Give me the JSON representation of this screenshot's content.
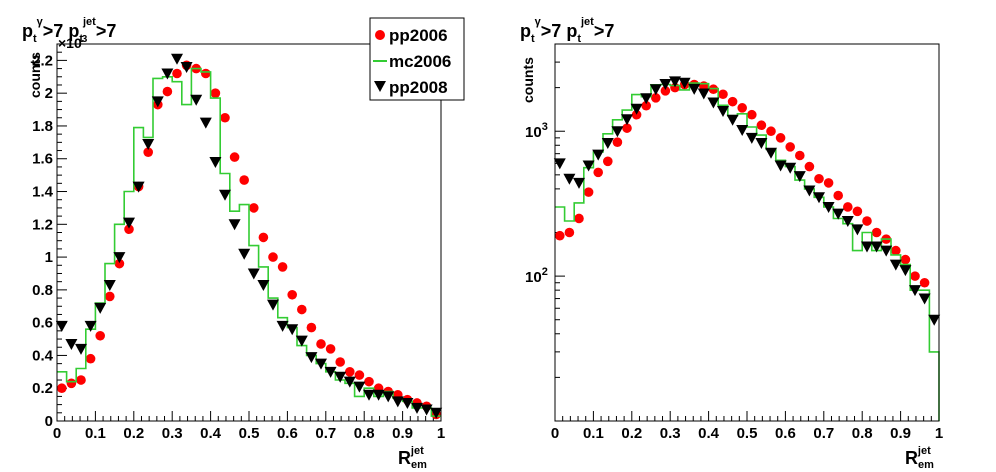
{
  "chart_data": [
    {
      "type": "scatter",
      "title": {
        "p1": "p",
        "sub1": "t",
        "sup1": "γ",
        "mid": ">7 p",
        "sub2": "t",
        "sup2": "jet",
        "end": ">7"
      },
      "xlabel": {
        "main": "R",
        "sub": "em",
        "sup": "jet"
      },
      "ylabel": "counts",
      "multiplier": {
        "times": "×10",
        "exp": "3"
      },
      "xlim": [
        0,
        1
      ],
      "ylim": [
        0,
        2300
      ],
      "yscale": "linear",
      "xticks": [
        {
          "v": 0,
          "label": "0"
        },
        {
          "v": 0.1,
          "label": "0.1"
        },
        {
          "v": 0.2,
          "label": "0.2"
        },
        {
          "v": 0.3,
          "label": "0.3"
        },
        {
          "v": 0.4,
          "label": "0.4"
        },
        {
          "v": 0.5,
          "label": "0.5"
        },
        {
          "v": 0.6,
          "label": "0.6"
        },
        {
          "v": 0.7,
          "label": "0.7"
        },
        {
          "v": 0.8,
          "label": "0.8"
        },
        {
          "v": 0.9,
          "label": "0.9"
        },
        {
          "v": 1,
          "label": "1"
        }
      ],
      "yticks": [
        {
          "v": 0,
          "label": "0"
        },
        {
          "v": 200,
          "label": "0.2"
        },
        {
          "v": 400,
          "label": "0.4"
        },
        {
          "v": 600,
          "label": "0.6"
        },
        {
          "v": 800,
          "label": "0.8"
        },
        {
          "v": 1000,
          "label": "1"
        },
        {
          "v": 1200,
          "label": "1.2"
        },
        {
          "v": 1400,
          "label": "1.4"
        },
        {
          "v": 1600,
          "label": "1.6"
        },
        {
          "v": 1800,
          "label": "1.8"
        },
        {
          "v": 2000,
          "label": "2"
        },
        {
          "v": 2200,
          "label": "2.2"
        }
      ],
      "legend": {
        "placement": "top-right",
        "entries": [
          "pp2006",
          "mc2006",
          "pp2008"
        ]
      },
      "series": [
        {
          "name": "pp2006",
          "style": "red-circle",
          "x": [
            0.0125,
            0.0375,
            0.0625,
            0.0875,
            0.1125,
            0.1375,
            0.1625,
            0.1875,
            0.2125,
            0.2375,
            0.2625,
            0.2875,
            0.3125,
            0.3375,
            0.3625,
            0.3875,
            0.4125,
            0.4375,
            0.4625,
            0.4875,
            0.5125,
            0.5375,
            0.5625,
            0.5875,
            0.6125,
            0.6375,
            0.6625,
            0.6875,
            0.7125,
            0.7375,
            0.7625,
            0.7875,
            0.8125,
            0.8375,
            0.8625,
            0.8875,
            0.9125,
            0.9375,
            0.9625,
            0.9875
          ],
          "y": [
            200,
            230,
            250,
            380,
            520,
            760,
            960,
            1170,
            1430,
            1640,
            1930,
            2010,
            2120,
            2170,
            2150,
            2120,
            2000,
            1850,
            1610,
            1470,
            1300,
            1120,
            1000,
            940,
            770,
            680,
            570,
            470,
            440,
            360,
            300,
            280,
            240,
            200,
            180,
            160,
            130,
            110,
            90,
            40
          ]
        },
        {
          "name": "mc2006",
          "style": "green-step",
          "edges": [
            0,
            0.025,
            0.05,
            0.075,
            0.1,
            0.125,
            0.15,
            0.175,
            0.2,
            0.225,
            0.25,
            0.275,
            0.3,
            0.325,
            0.35,
            0.375,
            0.4,
            0.425,
            0.45,
            0.475,
            0.5,
            0.525,
            0.55,
            0.575,
            0.6,
            0.625,
            0.65,
            0.675,
            0.7,
            0.725,
            0.75,
            0.775,
            0.8,
            0.825,
            0.85,
            0.875,
            0.9,
            0.925,
            0.95,
            0.975,
            1.0
          ],
          "y": [
            300,
            240,
            320,
            560,
            720,
            960,
            1200,
            1400,
            1790,
            1730,
            2090,
            2100,
            2070,
            1930,
            2150,
            2130,
            1970,
            1510,
            1280,
            1320,
            1070,
            940,
            750,
            630,
            570,
            460,
            400,
            350,
            300,
            250,
            230,
            150,
            200,
            150,
            180,
            140,
            120,
            80,
            80,
            30
          ]
        },
        {
          "name": "pp2008",
          "style": "black-triangle-down",
          "x": [
            0.0125,
            0.0375,
            0.0625,
            0.0875,
            0.1125,
            0.1375,
            0.1625,
            0.1875,
            0.2125,
            0.2375,
            0.2625,
            0.2875,
            0.3125,
            0.3375,
            0.3625,
            0.3875,
            0.4125,
            0.4375,
            0.4625,
            0.4875,
            0.5125,
            0.5375,
            0.5625,
            0.5875,
            0.6125,
            0.6375,
            0.6625,
            0.6875,
            0.7125,
            0.7375,
            0.7625,
            0.7875,
            0.8125,
            0.8375,
            0.8625,
            0.8875,
            0.9125,
            0.9375,
            0.9625,
            0.9875
          ],
          "y": [
            580,
            470,
            440,
            580,
            690,
            830,
            1000,
            1210,
            1430,
            1690,
            1950,
            2120,
            2210,
            2160,
            1960,
            1820,
            1580,
            1380,
            1200,
            1020,
            900,
            830,
            710,
            580,
            560,
            490,
            390,
            350,
            300,
            270,
            240,
            210,
            160,
            160,
            150,
            120,
            110,
            80,
            70,
            50
          ]
        }
      ]
    },
    {
      "type": "scatter",
      "title": {
        "p1": "p",
        "sub1": "t",
        "sup1": "γ",
        "mid": ">7 p",
        "sub2": "t",
        "sup2": "jet",
        "end": ">7"
      },
      "xlabel": {
        "main": "R",
        "sub": "em",
        "sup": "jet"
      },
      "ylabel": "counts",
      "xlim": [
        0,
        1
      ],
      "ylim": [
        10,
        4000
      ],
      "yscale": "log",
      "xticks": [
        {
          "v": 0,
          "label": "0"
        },
        {
          "v": 0.1,
          "label": "0.1"
        },
        {
          "v": 0.2,
          "label": "0.2"
        },
        {
          "v": 0.3,
          "label": "0.3"
        },
        {
          "v": 0.4,
          "label": "0.4"
        },
        {
          "v": 0.5,
          "label": "0.5"
        },
        {
          "v": 0.6,
          "label": "0.6"
        },
        {
          "v": 0.7,
          "label": "0.7"
        },
        {
          "v": 0.8,
          "label": "0.8"
        },
        {
          "v": 0.9,
          "label": "0.9"
        },
        {
          "v": 1,
          "label": "1"
        }
      ],
      "yticks": [
        {
          "v": 100,
          "base": "10",
          "exp": "2"
        },
        {
          "v": 1000,
          "base": "10",
          "exp": "3"
        }
      ],
      "series": [
        {
          "name": "pp2006",
          "style": "red-circle",
          "x": [
            0.0125,
            0.0375,
            0.0625,
            0.0875,
            0.1125,
            0.1375,
            0.1625,
            0.1875,
            0.2125,
            0.2375,
            0.2625,
            0.2875,
            0.3125,
            0.3375,
            0.3625,
            0.3875,
            0.4125,
            0.4375,
            0.4625,
            0.4875,
            0.5125,
            0.5375,
            0.5625,
            0.5875,
            0.6125,
            0.6375,
            0.6625,
            0.6875,
            0.7125,
            0.7375,
            0.7625,
            0.7875,
            0.8125,
            0.8375,
            0.8625,
            0.8875,
            0.9125,
            0.9375,
            0.9625
          ],
          "y": [
            190,
            200,
            250,
            380,
            520,
            620,
            840,
            1050,
            1300,
            1500,
            1700,
            1900,
            2000,
            2100,
            2100,
            2050,
            1950,
            1800,
            1600,
            1450,
            1300,
            1100,
            1000,
            900,
            780,
            680,
            570,
            470,
            440,
            360,
            300,
            280,
            240,
            200,
            180,
            150,
            130,
            100,
            90
          ]
        },
        {
          "name": "mc2006",
          "style": "green-step",
          "edges": [
            0,
            0.025,
            0.05,
            0.075,
            0.1,
            0.125,
            0.15,
            0.175,
            0.2,
            0.225,
            0.25,
            0.275,
            0.3,
            0.325,
            0.35,
            0.375,
            0.4,
            0.425,
            0.45,
            0.475,
            0.5,
            0.525,
            0.55,
            0.575,
            0.6,
            0.625,
            0.65,
            0.675,
            0.7,
            0.725,
            0.75,
            0.775,
            0.8,
            0.825,
            0.85,
            0.875,
            0.9,
            0.925,
            0.95,
            0.975,
            1.0
          ],
          "y": [
            300,
            240,
            320,
            560,
            720,
            960,
            1200,
            1400,
            1790,
            1730,
            2090,
            2100,
            2070,
            1930,
            2150,
            2130,
            1970,
            1510,
            1280,
            1320,
            1070,
            940,
            750,
            630,
            570,
            460,
            400,
            350,
            300,
            250,
            230,
            150,
            200,
            150,
            180,
            140,
            120,
            80,
            80,
            30
          ]
        },
        {
          "name": "pp2008",
          "style": "black-triangle-down",
          "x": [
            0.0125,
            0.0375,
            0.0625,
            0.0875,
            0.1125,
            0.1375,
            0.1625,
            0.1875,
            0.2125,
            0.2375,
            0.2625,
            0.2875,
            0.3125,
            0.3375,
            0.3625,
            0.3875,
            0.4125,
            0.4375,
            0.4625,
            0.4875,
            0.5125,
            0.5375,
            0.5625,
            0.5875,
            0.6125,
            0.6375,
            0.6625,
            0.6875,
            0.7125,
            0.7375,
            0.7625,
            0.7875,
            0.8125,
            0.8375,
            0.8625,
            0.8875,
            0.9125,
            0.9375,
            0.9625,
            0.9875
          ],
          "y": [
            600,
            470,
            440,
            580,
            690,
            830,
            1000,
            1210,
            1430,
            1690,
            1950,
            2120,
            2210,
            2160,
            1960,
            1820,
            1580,
            1380,
            1200,
            1020,
            900,
            830,
            710,
            580,
            560,
            490,
            390,
            350,
            300,
            270,
            240,
            210,
            160,
            160,
            150,
            120,
            110,
            80,
            70,
            50
          ]
        }
      ]
    }
  ],
  "colors": {
    "pp2006": "#ff0000",
    "mc2006": "#33cc33",
    "pp2008": "#000000",
    "axis": "#000000",
    "background": "#ffffff"
  }
}
